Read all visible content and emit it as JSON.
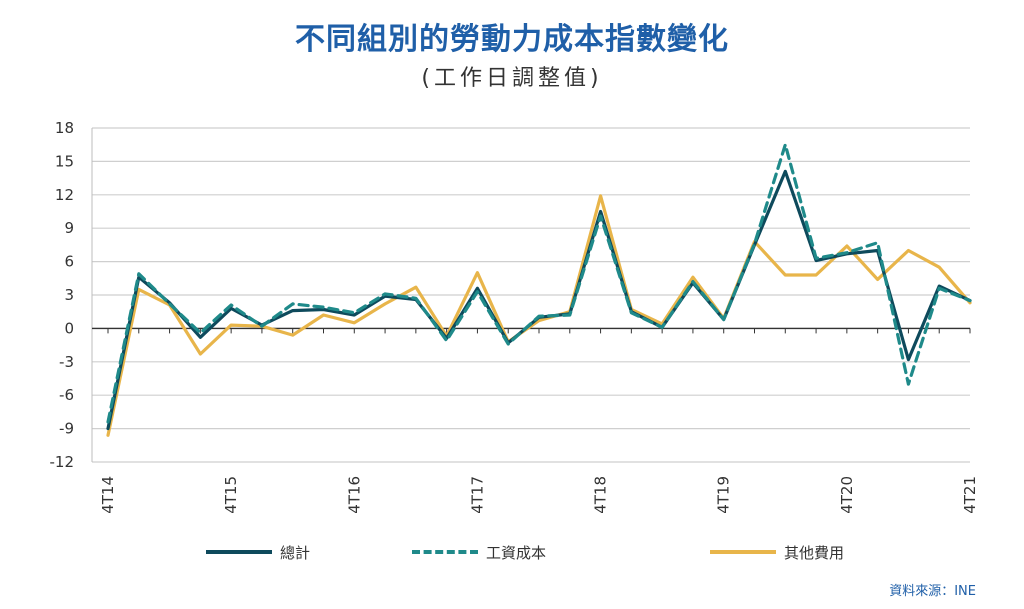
{
  "header": {
    "title": "不同組別的勞動力成本指數變化",
    "subtitle": "(工作日調整值)"
  },
  "source": "資料來源：INE",
  "chart_data": {
    "type": "line",
    "title": "不同組別的勞動力成本指數變化",
    "subtitle": "(工作日調整值)",
    "xlabel": "",
    "ylabel": "",
    "ylim": [
      -12,
      18
    ],
    "yticks": [
      18,
      15,
      12,
      9,
      6,
      3,
      0,
      -3,
      -6,
      -9,
      -12
    ],
    "grid": true,
    "legend_position": "bottom",
    "x": [
      "4T14",
      "1T15",
      "2T15",
      "3T15",
      "4T15",
      "1T16",
      "2T16",
      "3T16",
      "4T16",
      "1T17",
      "2T17",
      "3T17",
      "4T17",
      "1T18",
      "2T18",
      "3T18",
      "4T18",
      "1T19",
      "2T19",
      "3T19",
      "4T19",
      "1T20",
      "2T20",
      "3T20",
      "4T20",
      "1T21",
      "2T21",
      "3T21",
      "4T21"
    ],
    "xtick_labels": [
      "4T14",
      "4T15",
      "4T16",
      "4T17",
      "4T18",
      "4T19",
      "4T20",
      "4T21"
    ],
    "series": [
      {
        "name": "總計",
        "color": "#0e4a5c",
        "dash": "solid",
        "values": [
          -9.0,
          4.6,
          2.3,
          -0.8,
          1.8,
          0.3,
          1.6,
          1.7,
          1.2,
          2.9,
          2.6,
          -0.9,
          3.6,
          -1.3,
          1.0,
          1.3,
          10.5,
          1.5,
          0.1,
          4.1,
          0.8,
          7.5,
          14.1,
          6.1,
          6.7,
          7.0,
          -2.8,
          3.8,
          2.5
        ]
      },
      {
        "name": "工資成本",
        "color": "#1f8a8a",
        "dash": "dashed",
        "values": [
          -8.4,
          4.9,
          2.2,
          -0.4,
          2.1,
          0.2,
          2.2,
          1.9,
          1.4,
          3.1,
          2.7,
          -1.1,
          3.3,
          -1.4,
          1.1,
          1.2,
          10.1,
          1.4,
          0.1,
          4.2,
          0.8,
          7.6,
          16.5,
          6.3,
          6.8,
          7.7,
          -5.0,
          3.6,
          2.5
        ]
      },
      {
        "name": "其他費用",
        "color": "#e8b54a",
        "dash": "solid",
        "values": [
          -9.6,
          3.5,
          2.1,
          -2.3,
          0.3,
          0.2,
          -0.6,
          1.2,
          0.5,
          2.2,
          3.7,
          -0.7,
          5.0,
          -1.2,
          0.7,
          1.5,
          11.9,
          1.7,
          0.4,
          4.6,
          0.9,
          7.8,
          4.8,
          4.8,
          7.4,
          4.4,
          7.0,
          5.5,
          2.3
        ]
      }
    ]
  }
}
